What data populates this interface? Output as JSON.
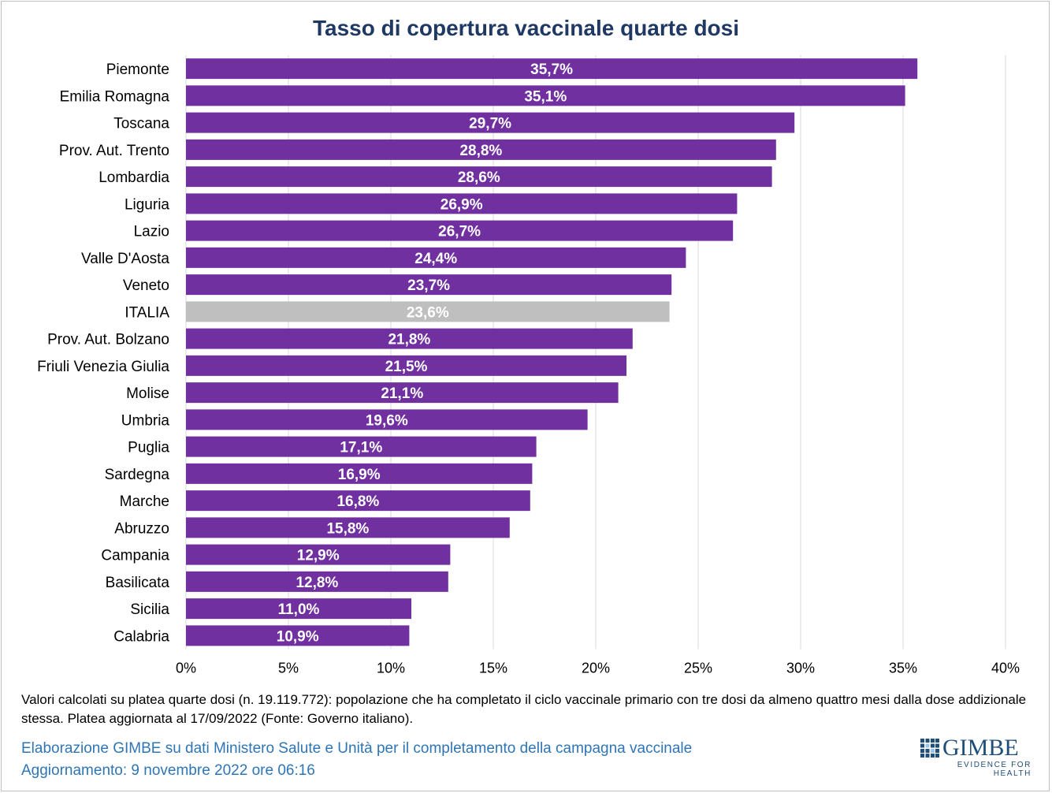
{
  "chart_data": {
    "type": "bar",
    "orientation": "horizontal",
    "title": "Tasso di copertura vaccinale quarte dosi",
    "categories": [
      "Piemonte",
      "Emilia Romagna",
      "Toscana",
      "Prov. Aut. Trento",
      "Lombardia",
      "Liguria",
      "Lazio",
      "Valle D'Aosta",
      "Veneto",
      "ITALIA",
      "Prov. Aut. Bolzano",
      "Friuli Venezia Giulia",
      "Molise",
      "Umbria",
      "Puglia",
      "Sardegna",
      "Marche",
      "Abruzzo",
      "Campania",
      "Basilicata",
      "Sicilia",
      "Calabria"
    ],
    "values": [
      35.7,
      35.1,
      29.7,
      28.8,
      28.6,
      26.9,
      26.7,
      24.4,
      23.7,
      23.6,
      21.8,
      21.5,
      21.1,
      19.6,
      17.1,
      16.9,
      16.8,
      15.8,
      12.9,
      12.8,
      11.0,
      10.9
    ],
    "value_labels": [
      "35,7%",
      "35,1%",
      "29,7%",
      "28,8%",
      "28,6%",
      "26,9%",
      "26,7%",
      "24,4%",
      "23,7%",
      "23,6%",
      "21,8%",
      "21,5%",
      "21,1%",
      "19,6%",
      "17,1%",
      "16,9%",
      "16,8%",
      "15,8%",
      "12,9%",
      "12,8%",
      "11,0%",
      "10,9%"
    ],
    "highlight_category": "ITALIA",
    "xlim": [
      0,
      40
    ],
    "x_ticks": [
      0,
      5,
      10,
      15,
      20,
      25,
      30,
      35,
      40
    ],
    "x_tick_labels": [
      "0%",
      "5%",
      "10%",
      "15%",
      "20%",
      "25%",
      "30%",
      "35%",
      "40%"
    ],
    "grid": "vertical",
    "colors": {
      "bar": "#7030a0",
      "highlight": "#bfbfbf",
      "grid": "#d9d9d9",
      "label": "#ffffff"
    }
  },
  "footnote": "Valori calcolati su platea quarte dosi (n. 19.119.772): popolazione che ha completato il ciclo vaccinale primario con tre dosi da almeno quattro mesi dalla dose addizionale stessa. Platea aggiornata al 17/09/2022 (Fonte: Governo italiano).",
  "credit": {
    "line1": "Elaborazione GIMBE su dati Ministero Salute e Unità per il completamento della campagna vaccinale",
    "line2": "Aggiornamento: 9 novembre 2022 ore 06:16"
  },
  "logo": {
    "name": "GIMBE",
    "tagline": "EVIDENCE FOR HEALTH",
    "icon": "gimbe-grid-icon",
    "color": "#1f4e79"
  }
}
